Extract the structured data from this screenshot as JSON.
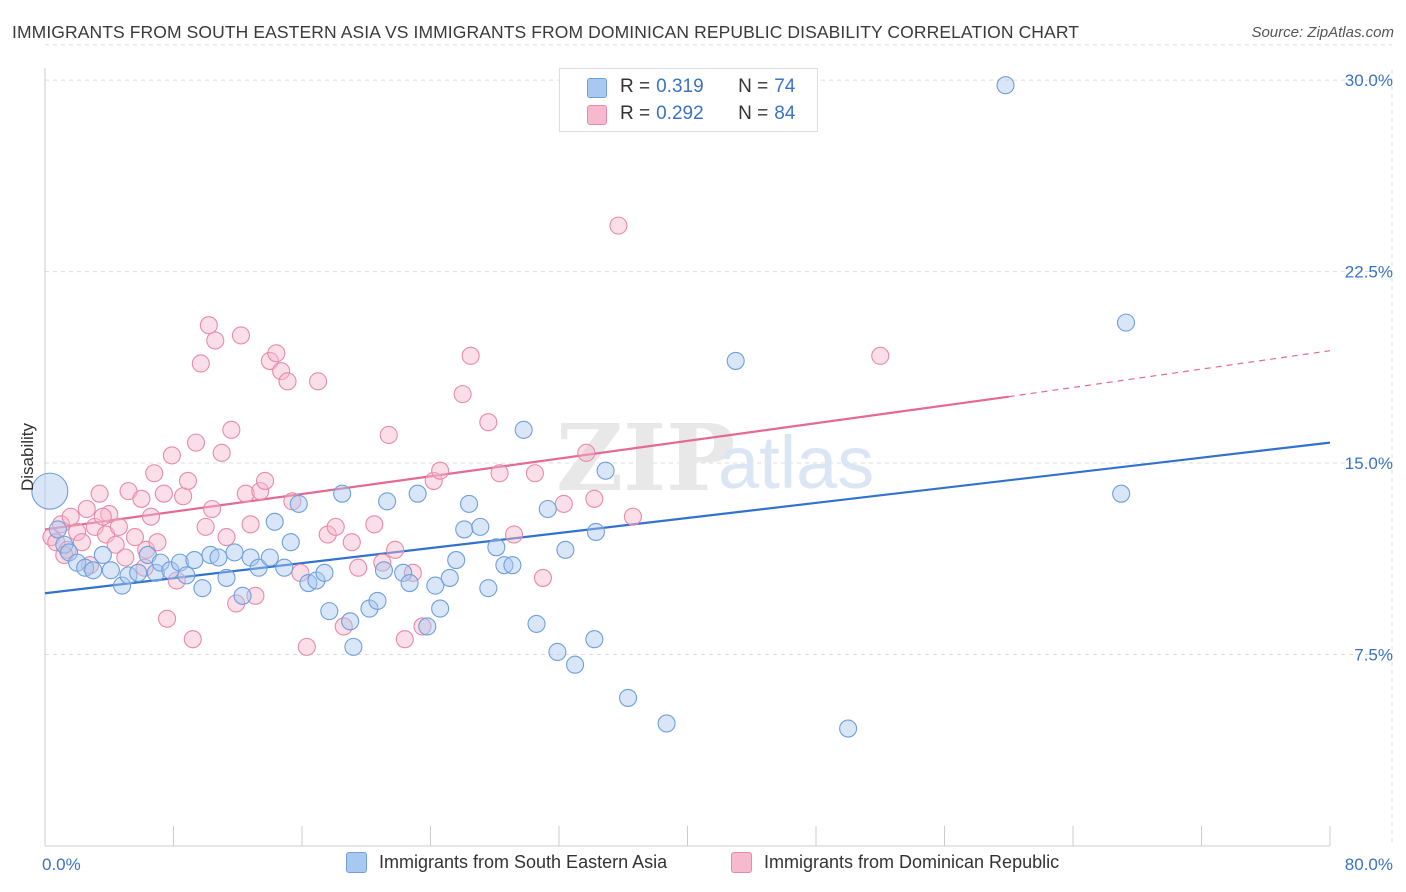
{
  "title": "IMMIGRANTS FROM SOUTH EASTERN ASIA VS IMMIGRANTS FROM DOMINICAN REPUBLIC DISABILITY CORRELATION CHART",
  "source": "Source: ZipAtlas.com",
  "watermark": {
    "zip": "ZIP",
    "atlas": "atlas"
  },
  "legend_top": {
    "r_label": "R =",
    "n_label": "N =",
    "series1": {
      "r": "0.319",
      "n": "74"
    },
    "series2": {
      "r": "0.292",
      "n": "84"
    }
  },
  "colors": {
    "blue_fill": "#a9c8f0",
    "blue_stroke": "#6f9fdc",
    "blue_line": "#3272cc",
    "pink_fill": "#f6b9cd",
    "pink_stroke": "#e88aa9",
    "pink_line": "#e46a92",
    "axis_text": "#3b73c4",
    "grid": "#dddddd"
  },
  "chart_data": {
    "type": "scatter",
    "title": "IMMIGRANTS FROM SOUTH EASTERN ASIA VS IMMIGRANTS FROM DOMINICAN REPUBLIC DISABILITY CORRELATION CHART",
    "xlabel": "",
    "ylabel": "Disability",
    "xlim": [
      0,
      80
    ],
    "ylim": [
      0,
      31.5
    ],
    "x_tick_labels": [
      "0.0%",
      "80.0%"
    ],
    "y_ticks": [
      7.5,
      15.0,
      22.5,
      30.0
    ],
    "y_tick_labels": [
      "7.5%",
      "15.0%",
      "22.5%",
      "30.0%"
    ],
    "grid": true,
    "legend_position": "top-center",
    "series": [
      {
        "name": "Immigrants from South Eastern Asia",
        "color": "#6f9fdc",
        "r": 0.319,
        "n": 74,
        "trend": {
          "x0": 0,
          "y0": 9.9,
          "x1": 80,
          "y1": 15.8
        },
        "points": [
          [
            0.3,
            13.9
          ],
          [
            0.8,
            12.4
          ],
          [
            1.2,
            11.8
          ],
          [
            1.5,
            11.5
          ],
          [
            2.0,
            11.1
          ],
          [
            2.5,
            10.9
          ],
          [
            3.0,
            10.8
          ],
          [
            3.6,
            11.4
          ],
          [
            4.1,
            10.8
          ],
          [
            4.8,
            10.2
          ],
          [
            5.2,
            10.6
          ],
          [
            5.8,
            10.7
          ],
          [
            6.4,
            11.4
          ],
          [
            6.9,
            10.7
          ],
          [
            7.2,
            11.1
          ],
          [
            7.8,
            10.8
          ],
          [
            8.4,
            11.1
          ],
          [
            8.8,
            10.6
          ],
          [
            9.3,
            11.2
          ],
          [
            9.8,
            10.1
          ],
          [
            10.3,
            11.4
          ],
          [
            10.8,
            11.3
          ],
          [
            11.3,
            10.5
          ],
          [
            11.8,
            11.5
          ],
          [
            12.3,
            9.8
          ],
          [
            12.8,
            11.3
          ],
          [
            13.3,
            10.9
          ],
          [
            14.0,
            11.3
          ],
          [
            14.3,
            12.7
          ],
          [
            14.9,
            10.9
          ],
          [
            15.3,
            11.9
          ],
          [
            15.8,
            13.4
          ],
          [
            16.4,
            10.3
          ],
          [
            16.9,
            10.4
          ],
          [
            17.4,
            10.7
          ],
          [
            17.7,
            9.2
          ],
          [
            18.5,
            13.8
          ],
          [
            19.0,
            8.8
          ],
          [
            19.2,
            7.8
          ],
          [
            20.2,
            9.3
          ],
          [
            20.7,
            9.6
          ],
          [
            21.1,
            10.8
          ],
          [
            21.3,
            13.5
          ],
          [
            22.3,
            10.7
          ],
          [
            22.7,
            10.3
          ],
          [
            23.2,
            13.8
          ],
          [
            23.8,
            8.6
          ],
          [
            24.3,
            10.2
          ],
          [
            24.6,
            9.3
          ],
          [
            25.2,
            10.5
          ],
          [
            25.6,
            11.2
          ],
          [
            26.1,
            12.4
          ],
          [
            26.4,
            13.4
          ],
          [
            27.1,
            12.5
          ],
          [
            27.6,
            10.1
          ],
          [
            28.1,
            11.7
          ],
          [
            28.6,
            11.0
          ],
          [
            29.1,
            11.0
          ],
          [
            29.8,
            16.3
          ],
          [
            30.6,
            8.7
          ],
          [
            31.3,
            13.2
          ],
          [
            31.9,
            7.6
          ],
          [
            32.4,
            11.6
          ],
          [
            33.0,
            7.1
          ],
          [
            34.2,
            8.1
          ],
          [
            34.3,
            12.3
          ],
          [
            34.9,
            14.7
          ],
          [
            36.3,
            5.8
          ],
          [
            38.7,
            4.8
          ],
          [
            43.0,
            19.0
          ],
          [
            50.0,
            4.6
          ],
          [
            59.8,
            29.8
          ],
          [
            67.3,
            20.5
          ],
          [
            67.0,
            13.8
          ]
        ]
      },
      {
        "name": "Immigrants from Dominican Republic",
        "color": "#e88aa9",
        "r": 0.292,
        "n": 84,
        "trend": {
          "x0": 0,
          "y0": 12.4,
          "x1": 60,
          "y1": 17.6,
          "dash_to_x": 80,
          "dash_to_y": 19.4
        },
        "points": [
          [
            0.4,
            12.1
          ],
          [
            0.7,
            11.9
          ],
          [
            1.0,
            12.6
          ],
          [
            1.4,
            11.6
          ],
          [
            1.6,
            12.9
          ],
          [
            2.0,
            12.3
          ],
          [
            2.3,
            11.9
          ],
          [
            2.6,
            13.2
          ],
          [
            3.1,
            12.5
          ],
          [
            3.4,
            13.8
          ],
          [
            3.8,
            12.2
          ],
          [
            4.0,
            13.0
          ],
          [
            4.4,
            11.8
          ],
          [
            4.6,
            12.5
          ],
          [
            5.0,
            11.3
          ],
          [
            5.2,
            13.9
          ],
          [
            5.6,
            12.1
          ],
          [
            6.0,
            13.6
          ],
          [
            6.3,
            11.6
          ],
          [
            6.6,
            12.9
          ],
          [
            6.8,
            14.6
          ],
          [
            7.0,
            11.9
          ],
          [
            7.4,
            13.8
          ],
          [
            7.6,
            8.9
          ],
          [
            7.9,
            15.3
          ],
          [
            8.2,
            10.4
          ],
          [
            8.6,
            13.7
          ],
          [
            8.9,
            14.3
          ],
          [
            9.2,
            8.1
          ],
          [
            9.4,
            15.8
          ],
          [
            9.7,
            18.9
          ],
          [
            10.0,
            12.5
          ],
          [
            10.2,
            20.4
          ],
          [
            10.4,
            13.2
          ],
          [
            10.6,
            19.8
          ],
          [
            11.0,
            15.4
          ],
          [
            11.3,
            12.1
          ],
          [
            11.6,
            16.3
          ],
          [
            11.9,
            9.5
          ],
          [
            12.2,
            20.0
          ],
          [
            12.5,
            13.8
          ],
          [
            12.8,
            12.6
          ],
          [
            13.1,
            9.8
          ],
          [
            13.4,
            13.9
          ],
          [
            13.7,
            14.3
          ],
          [
            14.0,
            19.0
          ],
          [
            14.4,
            19.3
          ],
          [
            14.7,
            18.6
          ],
          [
            15.1,
            18.2
          ],
          [
            15.4,
            13.5
          ],
          [
            15.9,
            10.7
          ],
          [
            16.3,
            7.8
          ],
          [
            17.0,
            18.2
          ],
          [
            17.6,
            12.2
          ],
          [
            18.1,
            12.5
          ],
          [
            18.6,
            8.6
          ],
          [
            19.1,
            11.9
          ],
          [
            19.5,
            10.9
          ],
          [
            20.5,
            12.6
          ],
          [
            21.0,
            11.1
          ],
          [
            21.4,
            16.1
          ],
          [
            21.8,
            11.6
          ],
          [
            22.4,
            8.1
          ],
          [
            22.9,
            10.7
          ],
          [
            23.5,
            8.6
          ],
          [
            24.2,
            14.3
          ],
          [
            24.6,
            14.7
          ],
          [
            26.0,
            17.7
          ],
          [
            26.5,
            19.2
          ],
          [
            27.6,
            16.6
          ],
          [
            28.3,
            14.6
          ],
          [
            29.2,
            12.2
          ],
          [
            30.5,
            14.6
          ],
          [
            31.0,
            10.5
          ],
          [
            32.3,
            13.4
          ],
          [
            33.7,
            15.4
          ],
          [
            34.2,
            13.6
          ],
          [
            35.7,
            24.3
          ],
          [
            36.6,
            12.9
          ],
          [
            52.0,
            19.2
          ],
          [
            1.2,
            11.4
          ],
          [
            2.8,
            11.0
          ],
          [
            3.6,
            12.9
          ],
          [
            6.2,
            10.9
          ]
        ]
      }
    ]
  },
  "bottom_legend": {
    "series1": "Immigrants from South Eastern Asia",
    "series2": "Immigrants from Dominican Republic"
  }
}
